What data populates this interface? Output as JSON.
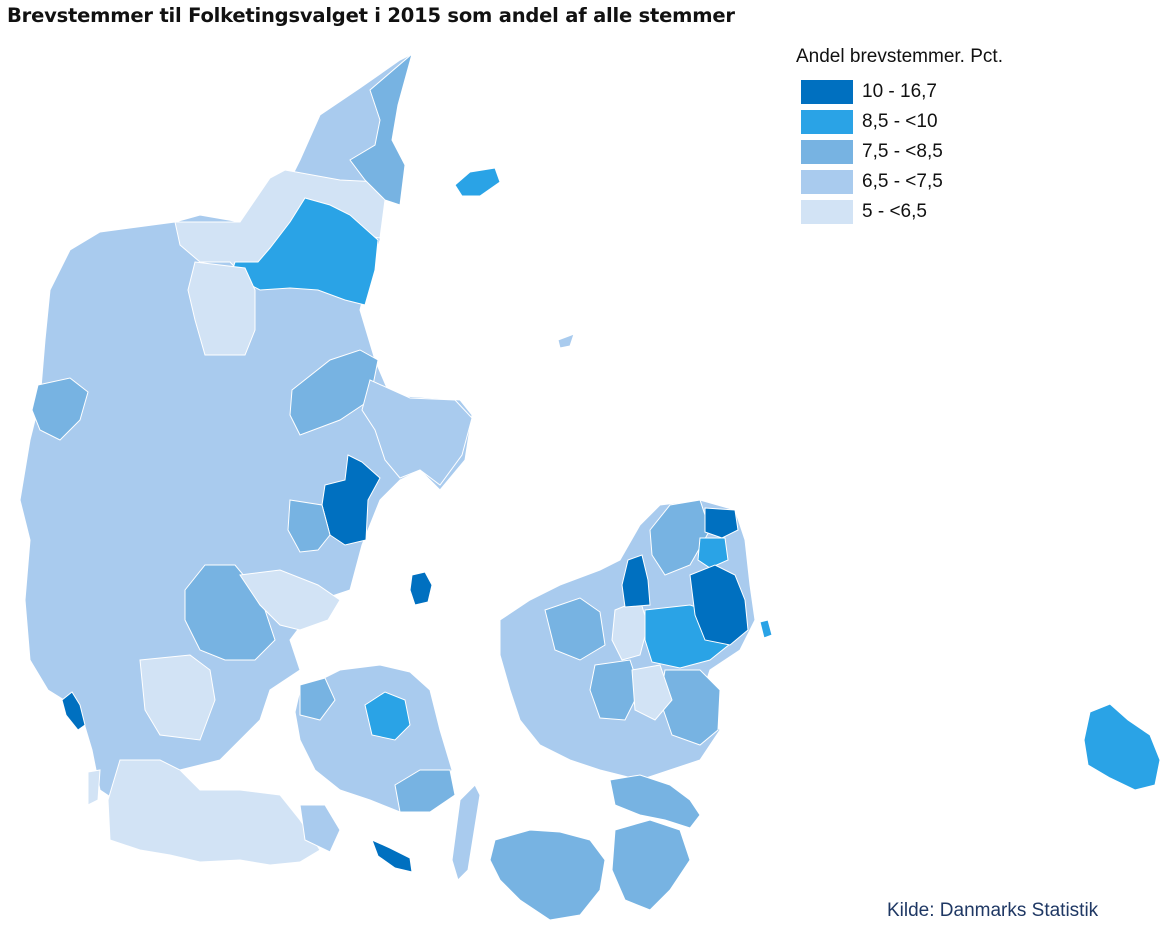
{
  "title": "Brevstemmer til Folketingsvalget i 2015 som andel af alle stemmer",
  "legend": {
    "title": "Andel brevstemmer. Pct.",
    "items": [
      {
        "label": "10 - 16,7",
        "color": "#0070c0"
      },
      {
        "label": "8,5 - <10",
        "color": "#2aa3e6"
      },
      {
        "label": "7,5 - <8,5",
        "color": "#77b3e2"
      },
      {
        "label": "6,5 - <7,5",
        "color": "#a9cbee"
      },
      {
        "label": "5 - <6,5",
        "color": "#d2e3f5"
      }
    ]
  },
  "source": "Kilde: Danmarks Statistik"
}
